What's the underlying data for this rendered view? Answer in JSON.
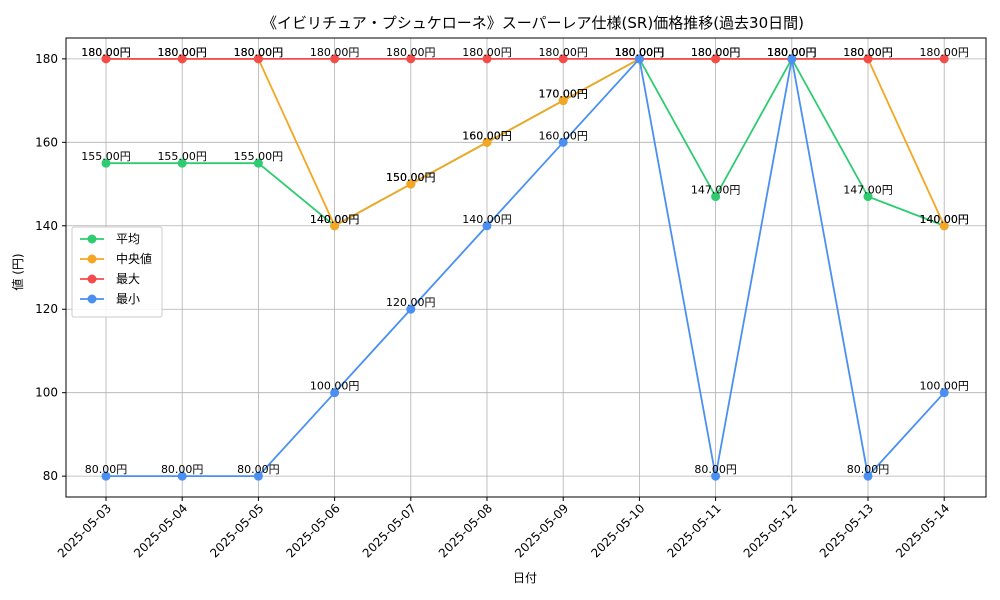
{
  "chart_data": {
    "type": "line",
    "title": "《イビリチュア・プシュケローネ》スーパーレア仕様(SR)価格推移(過去30日間)",
    "xlabel": "日付",
    "ylabel": "値 (円)",
    "ylim": [
      75,
      185
    ],
    "yticks": [
      80,
      100,
      120,
      140,
      160,
      180
    ],
    "grid": true,
    "legend_position": "center-left",
    "label_suffix": "円",
    "categories": [
      "2025-05-03",
      "2025-05-04",
      "2025-05-05",
      "2025-05-06",
      "2025-05-07",
      "2025-05-08",
      "2025-05-09",
      "2025-05-10",
      "2025-05-11",
      "2025-05-12",
      "2025-05-13",
      "2025-05-14"
    ],
    "series": [
      {
        "name": "平均",
        "color": "#2ecc71",
        "values": [
          155,
          155,
          155,
          140,
          150,
          160,
          170,
          180,
          147,
          180,
          147,
          140
        ]
      },
      {
        "name": "中央値",
        "color": "#f5a623",
        "values": [
          180,
          180,
          180,
          140,
          150,
          160,
          170,
          180,
          180,
          180,
          180,
          140
        ]
      },
      {
        "name": "最大",
        "color": "#f44b4b",
        "values": [
          180,
          180,
          180,
          180,
          180,
          180,
          180,
          180,
          180,
          180,
          180,
          180
        ]
      },
      {
        "name": "最小",
        "color": "#4a90f2",
        "values": [
          80,
          80,
          80,
          100,
          120,
          140,
          160,
          180,
          80,
          180,
          80,
          100
        ]
      }
    ]
  }
}
